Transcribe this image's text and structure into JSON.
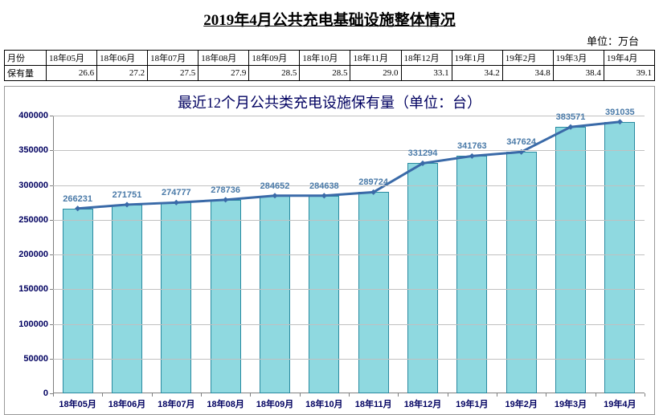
{
  "title": "2019年4月公共充电基础设施整体情况",
  "unit_label": "单位：万台",
  "table": {
    "row1_header": "月份",
    "row2_header": "保有量",
    "columns": [
      "18年05月",
      "18年06月",
      "18年07月",
      "18年08月",
      "18年09月",
      "18年10月",
      "18年11月",
      "18年12月",
      "19年1月",
      "19年2月",
      "19年3月",
      "19年4月"
    ],
    "values": [
      "26.6",
      "27.2",
      "27.5",
      "27.9",
      "28.5",
      "28.5",
      "29.0",
      "33.1",
      "34.2",
      "34.8",
      "38.4",
      "39.1"
    ]
  },
  "chart": {
    "title": "最近12个月公共类充电设施保有量（单位：台）",
    "type": "bar-line-combo",
    "ylim": [
      0,
      400000
    ],
    "ytick_step": 50000,
    "yticks": [
      "0",
      "50000",
      "100000",
      "150000",
      "200000",
      "250000",
      "300000",
      "350000",
      "400000"
    ],
    "categories": [
      "18年05月",
      "18年06月",
      "18年07月",
      "18年08月",
      "18年09月",
      "18年10月",
      "18年11月",
      "18年12月",
      "19年1月",
      "19年2月",
      "19年3月",
      "19年4月"
    ],
    "values": [
      266231,
      271751,
      274777,
      278736,
      284652,
      284638,
      289724,
      331294,
      341763,
      347624,
      383571,
      391035
    ],
    "bar_fill": "#8fd9e0",
    "bar_border": "#2a8aa0",
    "line_color": "#3a6aa8",
    "line_width": 3,
    "marker_size": 5,
    "grid_color": "#c0c0c0",
    "axis_color": "#808080",
    "label_color": "#000060",
    "dlabel_color": "#4a7aa8",
    "bar_width_ratio": 0.62
  }
}
